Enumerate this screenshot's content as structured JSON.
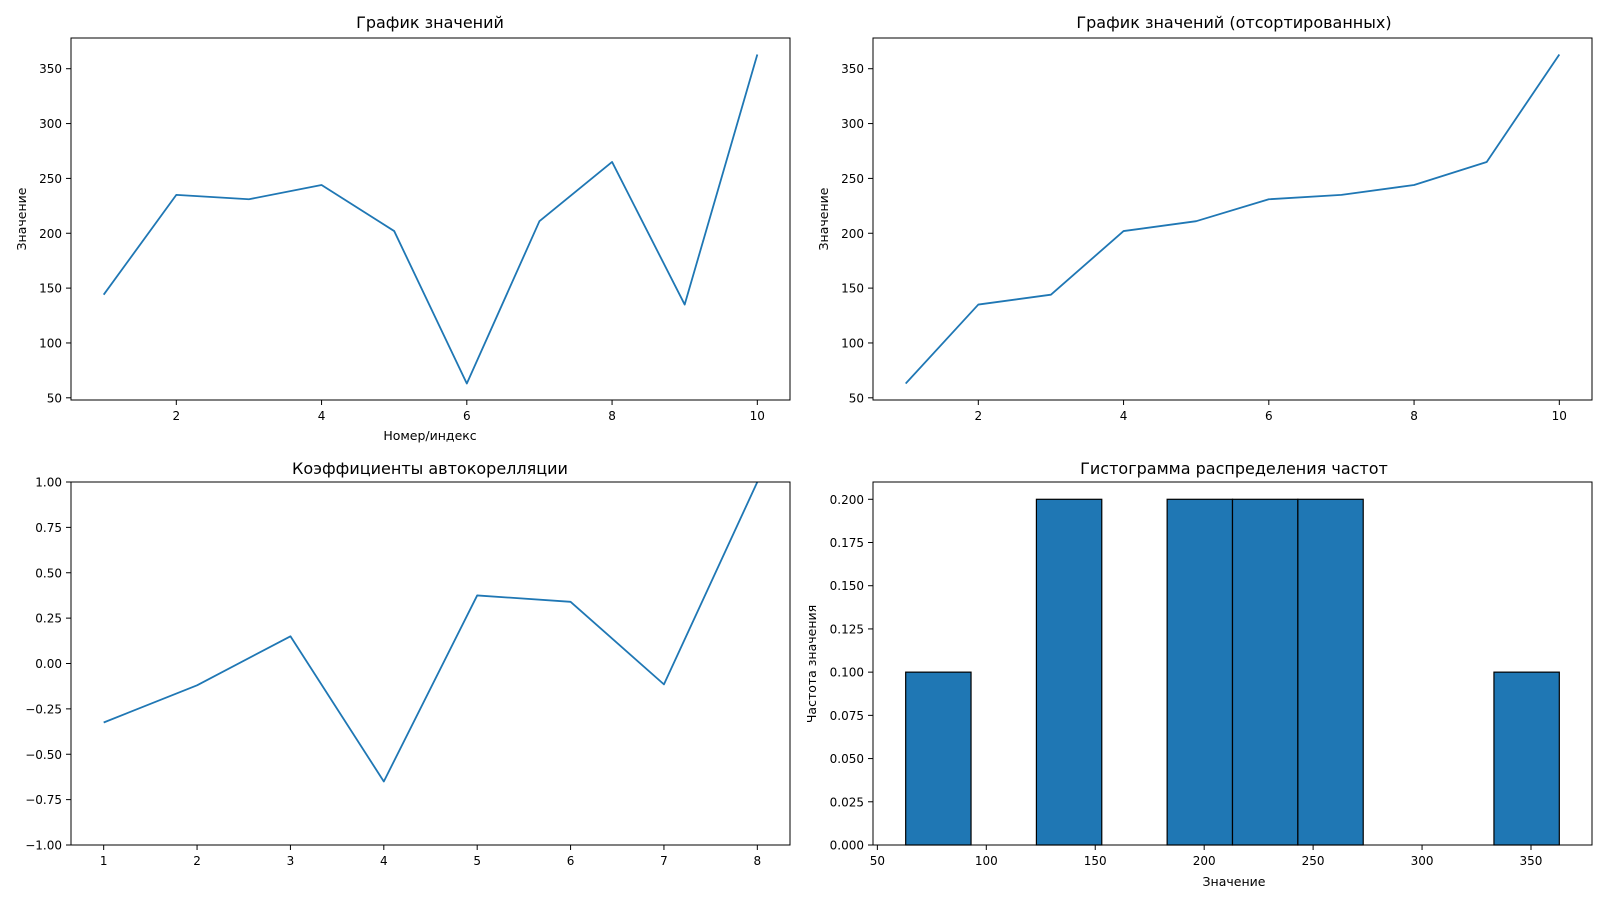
{
  "colors": {
    "line": "#1f77b4",
    "bar": "#1f77b4",
    "edge": "#000000"
  },
  "chart_data": [
    {
      "type": "line",
      "title": "График значений",
      "xlabel": "Номер/индекс",
      "ylabel": "Значение",
      "x": [
        1,
        2,
        3,
        4,
        5,
        6,
        7,
        8,
        9,
        10
      ],
      "y": [
        144,
        235,
        231,
        244,
        202,
        63,
        211,
        265,
        135,
        363
      ],
      "xlim": [
        0.55,
        10.45
      ],
      "ylim": [
        48,
        378
      ],
      "xticks": [
        2,
        4,
        6,
        8,
        10
      ],
      "yticks": [
        50,
        100,
        150,
        200,
        250,
        300,
        350
      ],
      "xtick_labels": [
        "2",
        "4",
        "6",
        "8",
        "10"
      ],
      "ytick_labels": [
        "50",
        "100",
        "150",
        "200",
        "250",
        "300",
        "350"
      ]
    },
    {
      "type": "line",
      "title": "График значений (отсортированных)",
      "xlabel": "",
      "ylabel": "Значение",
      "x": [
        1,
        2,
        3,
        4,
        5,
        6,
        7,
        8,
        9,
        10
      ],
      "y": [
        63,
        135,
        144,
        202,
        211,
        231,
        235,
        244,
        265,
        363
      ],
      "xlim": [
        0.55,
        10.45
      ],
      "ylim": [
        48,
        378
      ],
      "xticks": [
        2,
        4,
        6,
        8,
        10
      ],
      "yticks": [
        50,
        100,
        150,
        200,
        250,
        300,
        350
      ],
      "xtick_labels": [
        "2",
        "4",
        "6",
        "8",
        "10"
      ],
      "ytick_labels": [
        "50",
        "100",
        "150",
        "200",
        "250",
        "300",
        "350"
      ]
    },
    {
      "type": "line",
      "title": "Коэффициенты автокорелляции",
      "xlabel": "",
      "ylabel": "",
      "x": [
        1,
        2,
        3,
        4,
        5,
        6,
        7,
        8
      ],
      "y": [
        -0.325,
        -0.12,
        0.15,
        -0.65,
        0.375,
        0.34,
        -0.115,
        1.0
      ],
      "xlim": [
        0.65,
        8.35
      ],
      "ylim": [
        -1.0,
        1.0
      ],
      "xticks": [
        1,
        2,
        3,
        4,
        5,
        6,
        7,
        8
      ],
      "yticks": [
        -1.0,
        -0.75,
        -0.5,
        -0.25,
        0.0,
        0.25,
        0.5,
        0.75,
        1.0
      ],
      "xtick_labels": [
        "1",
        "2",
        "3",
        "4",
        "5",
        "6",
        "7",
        "8"
      ],
      "ytick_labels": [
        "−1.00",
        "−0.75",
        "−0.50",
        "−0.25",
        "0.00",
        "0.25",
        "0.50",
        "0.75",
        "1.00"
      ]
    },
    {
      "type": "bar",
      "title": "Гистограмма распределения частот",
      "xlabel": "Значение",
      "ylabel": "Частота значения",
      "bin_edges": [
        63,
        93,
        123,
        153,
        183,
        213,
        243,
        273,
        303,
        333,
        363
      ],
      "values": [
        0.1,
        0.0,
        0.2,
        0.0,
        0.2,
        0.2,
        0.2,
        0.0,
        0.0,
        0.1
      ],
      "xlim": [
        48,
        378
      ],
      "ylim": [
        0,
        0.21
      ],
      "xticks": [
        50,
        100,
        150,
        200,
        250,
        300,
        350
      ],
      "yticks": [
        0,
        0.025,
        0.05,
        0.075,
        0.1,
        0.125,
        0.15,
        0.175,
        0.2
      ],
      "xtick_labels": [
        "50",
        "100",
        "150",
        "200",
        "250",
        "300",
        "350"
      ],
      "ytick_labels": [
        "0.000",
        "0.025",
        "0.050",
        "0.075",
        "0.100",
        "0.125",
        "0.150",
        "0.175",
        "0.200"
      ]
    }
  ]
}
